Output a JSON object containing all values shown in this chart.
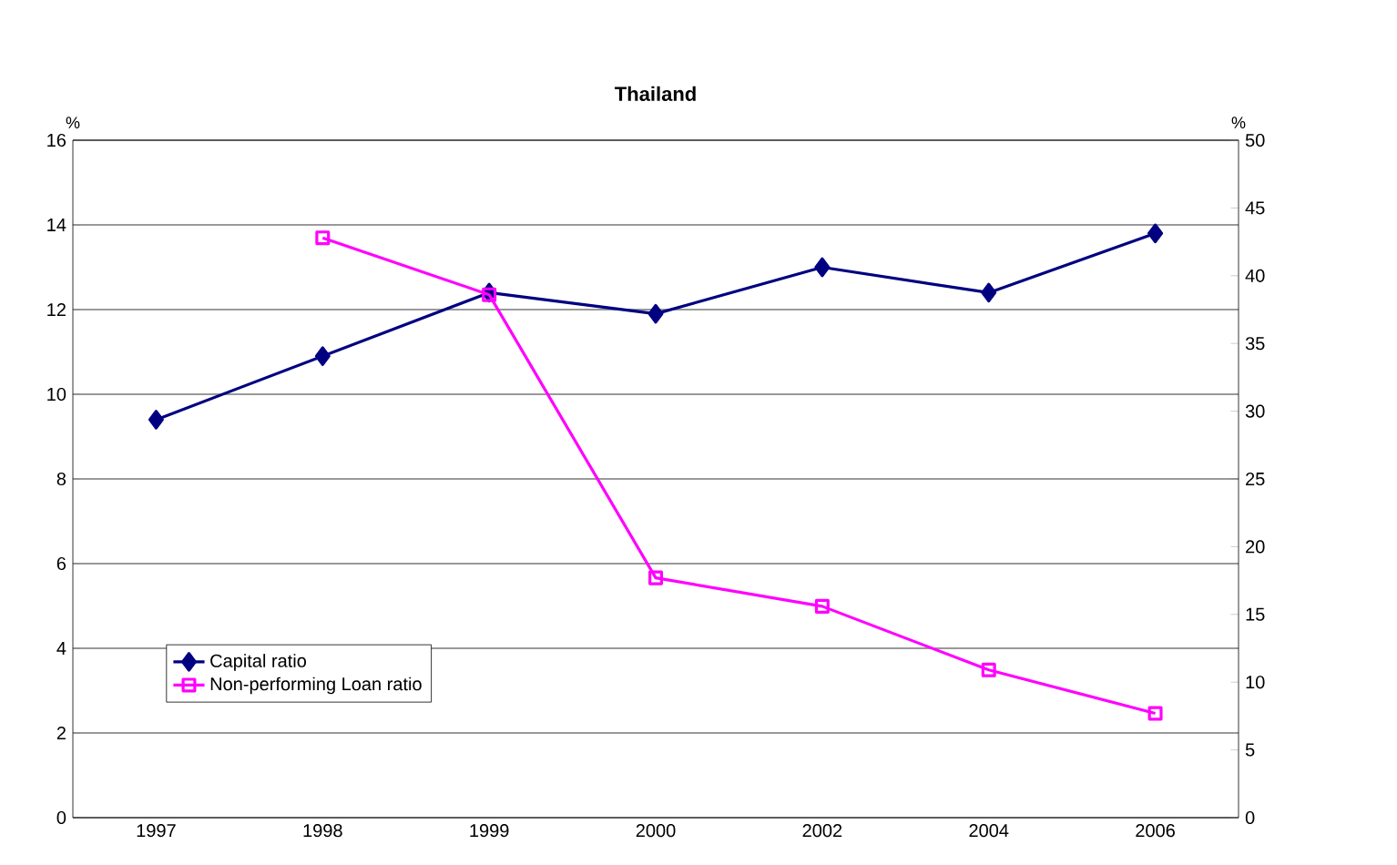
{
  "chart_data": {
    "type": "line",
    "title": "Thailand",
    "ylabel": "%",
    "y2label": "%",
    "categories": [
      "1997",
      "1998",
      "1999",
      "2000",
      "2002",
      "2004",
      "2006"
    ],
    "series": [
      {
        "name": "Capital ratio",
        "color": "#000080",
        "marker": "diamond",
        "values": [
          9.4,
          10.9,
          12.4,
          11.9,
          13.0,
          12.4,
          13.8
        ]
      },
      {
        "name": "Non-performing Loan ratio",
        "color": "#ff00ff",
        "marker": "square",
        "axis": "y2",
        "values": [
          null,
          42.8,
          38.6,
          17.7,
          15.6,
          10.9,
          7.7
        ]
      }
    ],
    "ylim": [
      0,
      16
    ],
    "yticks": [
      0,
      2,
      4,
      6,
      8,
      10,
      12,
      14,
      16
    ],
    "y2lim": [
      0,
      50
    ],
    "y2ticks": [
      0,
      5,
      10,
      15,
      20,
      25,
      30,
      35,
      40,
      45,
      50
    ],
    "grid": "y",
    "legend": "bottom left"
  }
}
